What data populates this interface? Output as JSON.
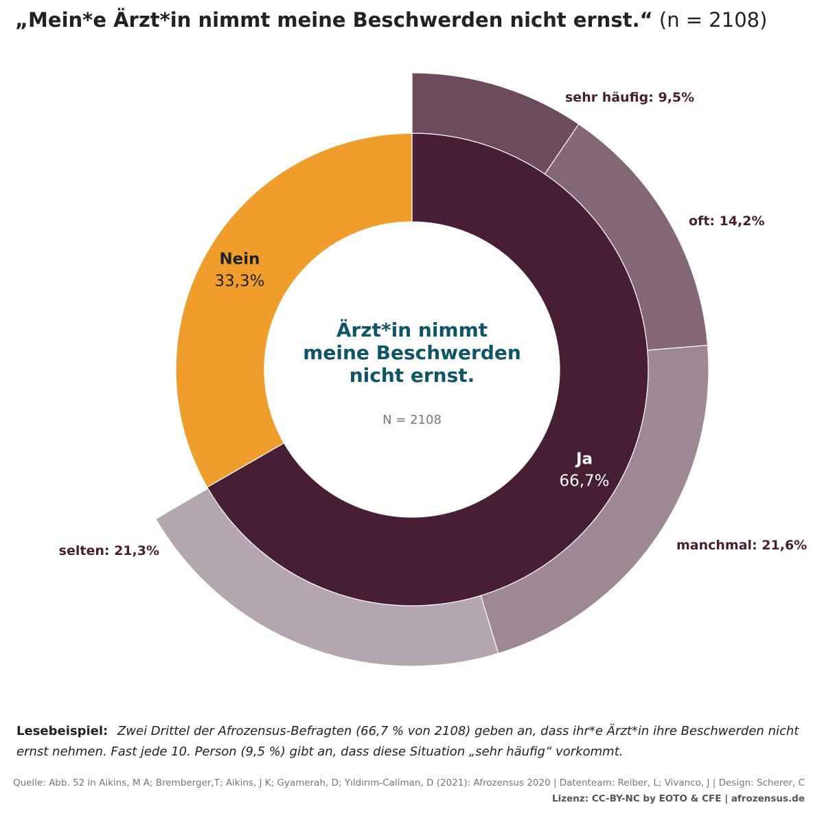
{
  "title": {
    "main": "„Mein*e Ärzt*in nimmt meine Beschwerden nicht ernst.“",
    "sample": "(n = 2108)"
  },
  "chart_data": {
    "type": "pie",
    "variant": "sunburst-donut",
    "center_title_lines": [
      "Ärzt*in nimmt",
      "meine Beschwerden",
      "nicht ernst."
    ],
    "center_n": "N = 2108",
    "inner": [
      {
        "name": "Ja",
        "label": "Ja",
        "value": 66.7,
        "value_label": "66,7%",
        "color": "#481e34",
        "text_color": "#ffffff"
      },
      {
        "name": "Nein",
        "label": "Nein",
        "value": 33.3,
        "value_label": "33,3%",
        "color": "#ef9e2e",
        "text_color": "#222222"
      }
    ],
    "outer": [
      {
        "name": "sehr häufig",
        "label": "sehr häufig: 9,5%",
        "value": 9.5,
        "color": "#6b4b5c"
      },
      {
        "name": "oft",
        "label": "oft: 14,2%",
        "value": 14.2,
        "color": "#836777"
      },
      {
        "name": "manchmal",
        "label": "manchmal: 21,6%",
        "value": 21.6,
        "color": "#9e8893"
      },
      {
        "name": "selten",
        "label": "selten: 21,3%",
        "value": 21.3,
        "color": "#b4a6ae"
      }
    ],
    "label_color": "#481e34",
    "center_title_color": "#0e5565",
    "center_n_color": "#777777"
  },
  "reading_example": {
    "label": "Lesebeispiel:",
    "text": "Zwei Drittel der Afrozensus-Befragten (66,7 % von 2108) geben an, dass ihr*e Ärzt*in ihre Beschwerden nicht ernst nehmen. Fast jede 10. Person (9,5 %) gibt an, dass diese Situation „sehr häufig“ vorkommt."
  },
  "source": "Quelle: Abb. 52 in Aikins, M A; Bremberger,T; Aikins, J K; Gyamerah, D; Yıldırım-Caliman, D (2021): Afrozensus 2020 | Datenteam: Reiber, L; Vivanco, J | Design: Scherer, C",
  "license": "Lizenz: CC-BY-NC by EOTO & CFE | afrozensus.de"
}
